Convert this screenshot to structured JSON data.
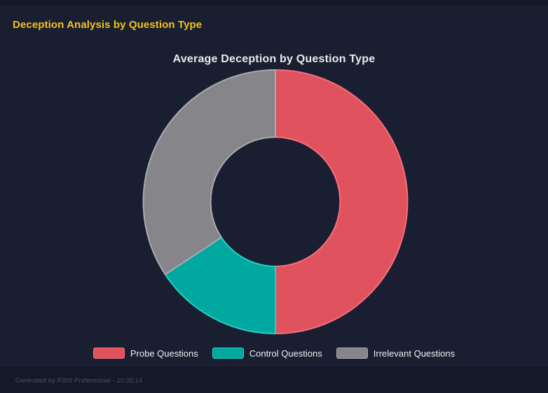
{
  "page": {
    "title": "Deception Analysis by Question Type",
    "background": "#191e30",
    "accent_yellow": "#f0c320"
  },
  "chart_data": {
    "type": "pie",
    "variant": "doughnut",
    "title": "Average Deception by Question Type",
    "labels": [
      "Probe Questions",
      "Control Questions",
      "Irrelevant Questions"
    ],
    "values_pct": [
      50.0,
      15.7,
      34.3
    ],
    "colors": [
      "#e0525e",
      "#00a8a0",
      "#86868a"
    ],
    "border_colors": [
      "#f76f7d",
      "#23d2c5",
      "#aaaaae"
    ],
    "cutout_pct": 49,
    "start_angle_deg": 0,
    "direction": "clockwise",
    "legend_position": "bottom",
    "grid": false
  },
  "footer": {
    "text": "Generated by P300 Professional - 10:05:14"
  }
}
